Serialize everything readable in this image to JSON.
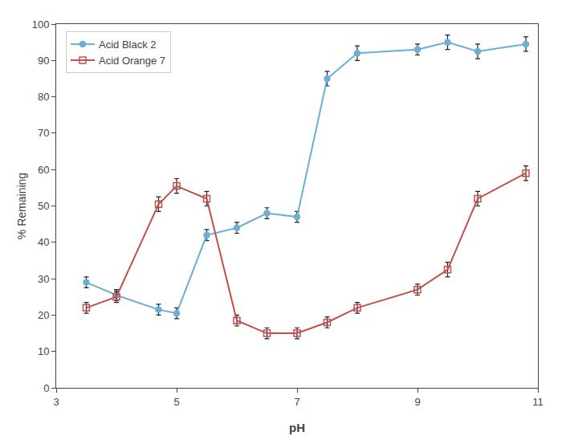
{
  "chart_data": {
    "type": "line",
    "x_label": "pH",
    "y_label": "% Remaining",
    "x": [
      3.5,
      4.0,
      4.7,
      5.0,
      5.5,
      6.0,
      6.5,
      7.0,
      7.5,
      8.0,
      9.0,
      9.5,
      10.0,
      10.8
    ],
    "series": [
      {
        "name": "Acid Black 2",
        "color": "#6baed6",
        "marker": "circle",
        "line_style": "solid",
        "values": [
          29.0,
          25.5,
          21.5,
          20.5,
          42.0,
          44.0,
          48.0,
          47.0,
          85.0,
          92.0,
          93.0,
          95.0,
          92.5,
          94.5
        ],
        "errors": [
          1.5,
          1.5,
          1.5,
          1.5,
          1.5,
          1.5,
          1.5,
          1.5,
          2.0,
          2.0,
          1.5,
          2.0,
          2.0,
          2.0
        ]
      },
      {
        "name": "Acid Orange 7",
        "color": "#c0504d",
        "marker": "square-open",
        "line_style": "solid",
        "values": [
          22.0,
          25.0,
          50.5,
          55.5,
          52.0,
          18.5,
          15.0,
          15.0,
          18.0,
          22.0,
          27.0,
          32.5,
          52.0,
          59.0
        ],
        "errors": [
          1.5,
          1.5,
          2.0,
          2.0,
          2.0,
          1.5,
          1.5,
          1.5,
          1.5,
          1.5,
          1.5,
          2.0,
          2.0,
          2.0
        ]
      }
    ],
    "xlim": [
      3,
      11
    ],
    "ylim": [
      0,
      100
    ],
    "xticks": [
      3,
      5,
      7,
      9,
      11
    ],
    "yticks": [
      0,
      10,
      20,
      30,
      40,
      50,
      60,
      70,
      80,
      90,
      100
    ],
    "grid": false,
    "legend": "upper left"
  }
}
